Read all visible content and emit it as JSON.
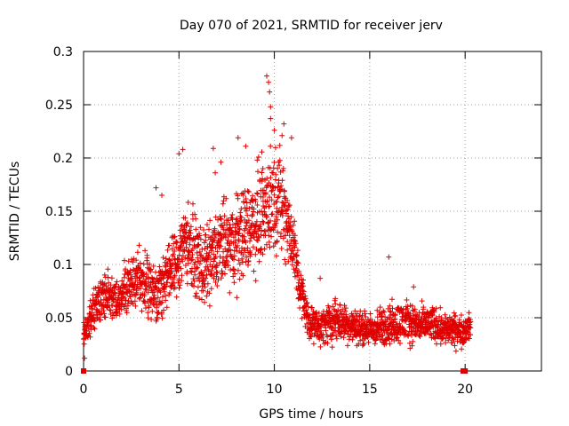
{
  "chart_data": {
    "type": "scatter",
    "title": "Day 070 of 2021, SRMTID for receiver jerv",
    "xlabel": "GPS time / hours",
    "ylabel": "SRMTID / TECUs",
    "xlim": [
      0,
      24
    ],
    "ylim": [
      0,
      0.3
    ],
    "x_ticks": [
      0,
      5,
      10,
      15,
      20
    ],
    "x_tick_labels": [
      "0",
      "5",
      "10",
      "15",
      "20"
    ],
    "y_ticks": [
      0,
      0.05,
      0.1,
      0.15,
      0.2,
      0.25,
      0.3
    ],
    "y_tick_labels": [
      "0",
      "0.05",
      "0.1",
      "0.15",
      "0.2",
      "0.25",
      "0.3"
    ],
    "grid": true,
    "marker": "plus",
    "color": "#e00000",
    "series": [
      {
        "name": "SRMTID",
        "trend_x": [
          0,
          0.3,
          0.7,
          1.2,
          1.8,
          2.3,
          2.9,
          3.4,
          3.9,
          4.4,
          4.9,
          5.3,
          5.8,
          6.3,
          6.8,
          7.3,
          7.8,
          8.3,
          8.8,
          9.3,
          9.7,
          10.2,
          10.6,
          11.0,
          11.4,
          11.8,
          12.3,
          12.8,
          13.4,
          14.0,
          14.6,
          15.2,
          15.8,
          16.4,
          17.0,
          17.6,
          18.2,
          18.8,
          19.3,
          19.8,
          20.3
        ],
        "trend_y": [
          0.035,
          0.045,
          0.06,
          0.07,
          0.062,
          0.075,
          0.082,
          0.075,
          0.07,
          0.085,
          0.095,
          0.12,
          0.105,
          0.09,
          0.1,
          0.115,
          0.11,
          0.125,
          0.13,
          0.14,
          0.15,
          0.16,
          0.14,
          0.11,
          0.07,
          0.045,
          0.038,
          0.042,
          0.045,
          0.04,
          0.038,
          0.036,
          0.04,
          0.042,
          0.044,
          0.04,
          0.042,
          0.038,
          0.036,
          0.035,
          0.04
        ],
        "spread_y": [
          0.015,
          0.02,
          0.025,
          0.03,
          0.025,
          0.03,
          0.035,
          0.04,
          0.035,
          0.04,
          0.045,
          0.05,
          0.045,
          0.045,
          0.05,
          0.05,
          0.055,
          0.055,
          0.06,
          0.06,
          0.065,
          0.06,
          0.055,
          0.045,
          0.03,
          0.02,
          0.02,
          0.025,
          0.025,
          0.02,
          0.02,
          0.02,
          0.025,
          0.025,
          0.025,
          0.022,
          0.022,
          0.02,
          0.02,
          0.018,
          0.015
        ],
        "peaks": [
          [
            9.6,
            0.277
          ],
          [
            9.7,
            0.271
          ],
          [
            9.75,
            0.262
          ],
          [
            9.8,
            0.248
          ],
          [
            9.8,
            0.237
          ],
          [
            10.5,
            0.232
          ],
          [
            10.4,
            0.221
          ],
          [
            10.9,
            0.219
          ],
          [
            10.0,
            0.226
          ],
          [
            8.1,
            0.219
          ],
          [
            8.5,
            0.211
          ],
          [
            5.2,
            0.208
          ],
          [
            5.0,
            0.204
          ],
          [
            6.8,
            0.209
          ],
          [
            7.2,
            0.196
          ],
          [
            9.1,
            0.198
          ],
          [
            9.4,
            0.19
          ],
          [
            3.8,
            0.172
          ],
          [
            4.1,
            0.165
          ],
          [
            6.9,
            0.186
          ],
          [
            16.0,
            0.107
          ],
          [
            12.4,
            0.087
          ],
          [
            17.3,
            0.079
          ],
          [
            13.2,
            0.068
          ],
          [
            0.05,
            0.012
          ]
        ],
        "zero_points": [
          [
            0.0,
            0.0
          ],
          [
            19.9,
            0.0
          ],
          [
            20.0,
            0.0
          ]
        ]
      }
    ]
  }
}
